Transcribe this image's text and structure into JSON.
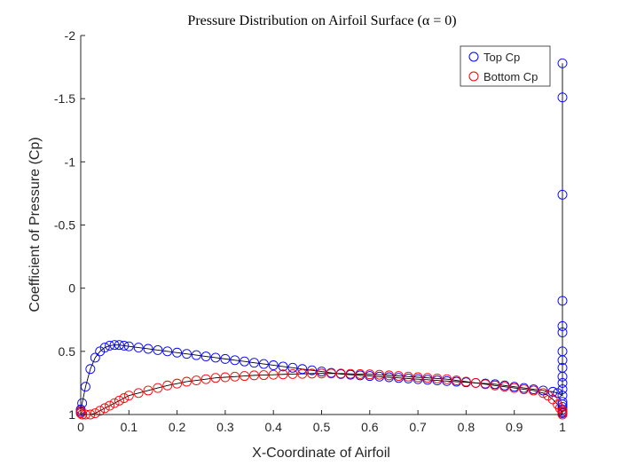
{
  "chart_data": {
    "type": "scatter",
    "title": "Pressure Distribution on Airfoil Surface (α = 0)",
    "xlabel": "X-Coordinate of Airfoil",
    "ylabel": "Coefficient of Pressure (Cp)",
    "xlim": [
      0,
      1
    ],
    "ylim": [
      -2,
      1
    ],
    "y_reversed": true,
    "grid": false,
    "legend_position": "top-right",
    "x_ticks": [
      "0",
      "0.1",
      "0.2",
      "0.3",
      "0.4",
      "0.5",
      "0.6",
      "0.7",
      "0.8",
      "0.9",
      "1"
    ],
    "y_ticks": [
      "-2",
      "-1.5",
      "-1",
      "-0.5",
      "0",
      "0.5",
      "1"
    ],
    "series": [
      {
        "name": "Top Cp",
        "color": "#0000ff",
        "marker": "circle",
        "x": [
          0.0,
          0.0,
          0.003,
          0.01,
          0.02,
          0.03,
          0.04,
          0.05,
          0.06,
          0.07,
          0.08,
          0.09,
          0.1,
          0.12,
          0.14,
          0.16,
          0.18,
          0.2,
          0.22,
          0.24,
          0.26,
          0.28,
          0.3,
          0.32,
          0.34,
          0.36,
          0.38,
          0.4,
          0.42,
          0.44,
          0.46,
          0.48,
          0.5,
          0.52,
          0.54,
          0.56,
          0.58,
          0.6,
          0.62,
          0.64,
          0.66,
          0.68,
          0.7,
          0.72,
          0.74,
          0.76,
          0.78,
          0.8,
          0.82,
          0.84,
          0.86,
          0.88,
          0.9,
          0.92,
          0.94,
          0.96,
          0.98,
          0.99,
          1.0,
          1.0,
          1.0,
          1.0,
          1.0,
          1.0,
          1.0,
          1.0,
          1.0,
          1.0,
          1.0,
          1.0,
          1.0,
          1.0,
          1.0,
          1.0,
          1.0,
          1.0,
          1.0
        ],
        "y": [
          0.98,
          0.96,
          0.91,
          0.78,
          0.64,
          0.55,
          0.5,
          0.47,
          0.455,
          0.45,
          0.45,
          0.455,
          0.46,
          0.47,
          0.48,
          0.49,
          0.5,
          0.51,
          0.52,
          0.53,
          0.54,
          0.55,
          0.56,
          0.57,
          0.58,
          0.59,
          0.6,
          0.61,
          0.62,
          0.63,
          0.64,
          0.65,
          0.66,
          0.67,
          0.68,
          0.685,
          0.69,
          0.695,
          0.7,
          0.705,
          0.71,
          0.715,
          0.72,
          0.725,
          0.73,
          0.735,
          0.74,
          0.745,
          0.75,
          0.755,
          0.76,
          0.77,
          0.78,
          0.79,
          0.8,
          0.81,
          0.82,
          0.83,
          -1.78,
          -1.51,
          -0.74,
          0.1,
          0.3,
          0.35,
          0.5,
          0.57,
          0.63,
          0.7,
          0.75,
          0.8,
          0.85,
          0.9,
          0.92,
          0.94,
          0.96,
          0.98,
          0.99
        ]
      },
      {
        "name": "Bottom Cp",
        "color": "#ff0000",
        "marker": "circle",
        "x": [
          0.0,
          0.0,
          0.003,
          0.01,
          0.02,
          0.03,
          0.04,
          0.05,
          0.06,
          0.07,
          0.08,
          0.09,
          0.1,
          0.12,
          0.14,
          0.16,
          0.18,
          0.2,
          0.22,
          0.24,
          0.26,
          0.28,
          0.3,
          0.32,
          0.34,
          0.36,
          0.38,
          0.4,
          0.42,
          0.44,
          0.46,
          0.48,
          0.5,
          0.52,
          0.54,
          0.56,
          0.58,
          0.6,
          0.62,
          0.64,
          0.66,
          0.68,
          0.7,
          0.72,
          0.74,
          0.76,
          0.78,
          0.8,
          0.82,
          0.84,
          0.86,
          0.88,
          0.9,
          0.92,
          0.94,
          0.96,
          0.97,
          0.98,
          0.99,
          0.995,
          1.0,
          1.0,
          1.0
        ],
        "y": [
          0.97,
          0.99,
          1.0,
          1.0,
          1.0,
          0.99,
          0.97,
          0.95,
          0.93,
          0.91,
          0.89,
          0.87,
          0.85,
          0.83,
          0.81,
          0.79,
          0.77,
          0.755,
          0.74,
          0.73,
          0.72,
          0.71,
          0.705,
          0.7,
          0.695,
          0.69,
          0.688,
          0.685,
          0.682,
          0.68,
          0.678,
          0.676,
          0.675,
          0.675,
          0.676,
          0.678,
          0.68,
          0.682,
          0.685,
          0.69,
          0.695,
          0.7,
          0.705,
          0.71,
          0.715,
          0.72,
          0.73,
          0.74,
          0.75,
          0.76,
          0.77,
          0.78,
          0.79,
          0.8,
          0.81,
          0.83,
          0.85,
          0.88,
          0.92,
          0.95,
          0.97,
          0.985,
          1.0
        ]
      }
    ],
    "reference_curves": [
      {
        "color": "#000000",
        "x": [
          0.0,
          0.003,
          0.01,
          0.02,
          0.03,
          0.04,
          0.05,
          0.06,
          0.07,
          0.08,
          0.09,
          0.1,
          0.12,
          0.14,
          0.16,
          0.18,
          0.2,
          0.22,
          0.24,
          0.26,
          0.28,
          0.3,
          0.32,
          0.34,
          0.36,
          0.38,
          0.4,
          0.42,
          0.44,
          0.46,
          0.48,
          0.5,
          0.52,
          0.54,
          0.56,
          0.58,
          0.6,
          0.62,
          0.64,
          0.66,
          0.68,
          0.7,
          0.72,
          0.74,
          0.76,
          0.78,
          0.8,
          0.82,
          0.84,
          0.86,
          0.88,
          0.9,
          0.92,
          0.94,
          0.96,
          0.98,
          0.99,
          1.0,
          1.0
        ],
        "y": [
          0.96,
          0.91,
          0.78,
          0.64,
          0.55,
          0.5,
          0.47,
          0.455,
          0.45,
          0.45,
          0.455,
          0.46,
          0.47,
          0.48,
          0.49,
          0.5,
          0.51,
          0.52,
          0.53,
          0.54,
          0.55,
          0.56,
          0.57,
          0.58,
          0.59,
          0.6,
          0.61,
          0.62,
          0.63,
          0.64,
          0.65,
          0.66,
          0.67,
          0.68,
          0.685,
          0.69,
          0.695,
          0.7,
          0.705,
          0.71,
          0.715,
          0.72,
          0.725,
          0.73,
          0.735,
          0.74,
          0.745,
          0.75,
          0.755,
          0.76,
          0.77,
          0.78,
          0.79,
          0.8,
          0.81,
          0.82,
          0.83,
          0.85,
          -1.78
        ]
      },
      {
        "color": "#000000",
        "x": [
          0.0,
          0.003,
          0.01,
          0.02,
          0.03,
          0.04,
          0.05,
          0.06,
          0.07,
          0.08,
          0.09,
          0.1,
          0.12,
          0.14,
          0.16,
          0.18,
          0.2,
          0.22,
          0.24,
          0.26,
          0.28,
          0.3,
          0.32,
          0.34,
          0.36,
          0.38,
          0.4,
          0.42,
          0.44,
          0.46,
          0.48,
          0.5,
          0.52,
          0.54,
          0.56,
          0.58,
          0.6,
          0.62,
          0.64,
          0.66,
          0.68,
          0.7,
          0.72,
          0.74,
          0.76,
          0.78,
          0.8,
          0.82,
          0.84,
          0.86,
          0.88,
          0.9,
          0.92,
          0.94,
          0.96,
          0.97,
          0.98,
          0.99,
          0.995,
          1.0
        ],
        "y": [
          0.99,
          1.0,
          1.0,
          1.0,
          0.99,
          0.97,
          0.95,
          0.93,
          0.91,
          0.89,
          0.87,
          0.85,
          0.83,
          0.81,
          0.79,
          0.77,
          0.755,
          0.74,
          0.73,
          0.72,
          0.71,
          0.705,
          0.7,
          0.695,
          0.69,
          0.688,
          0.685,
          0.682,
          0.68,
          0.678,
          0.676,
          0.675,
          0.675,
          0.676,
          0.678,
          0.68,
          0.682,
          0.685,
          0.69,
          0.695,
          0.7,
          0.705,
          0.71,
          0.715,
          0.72,
          0.73,
          0.74,
          0.75,
          0.76,
          0.77,
          0.78,
          0.79,
          0.8,
          0.81,
          0.83,
          0.85,
          0.88,
          0.92,
          0.95,
          1.0
        ]
      }
    ]
  }
}
